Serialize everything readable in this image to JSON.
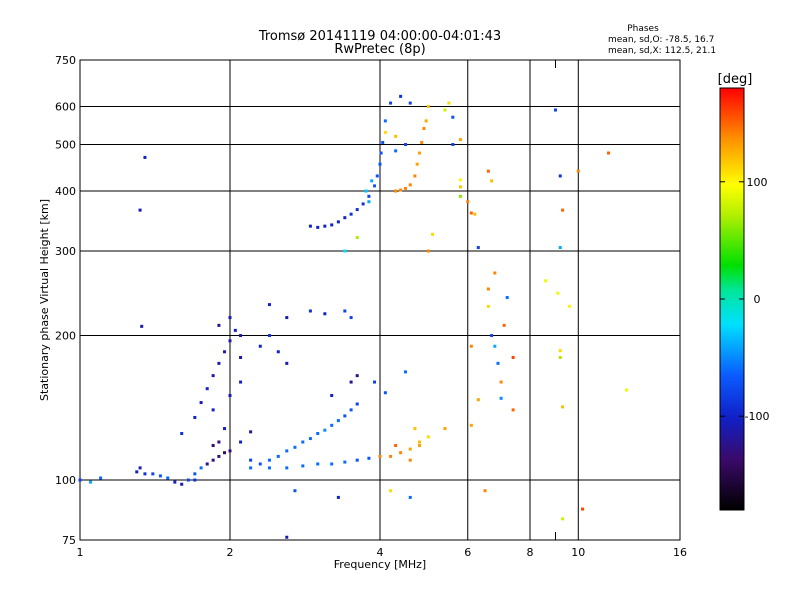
{
  "chart_data": {
    "type": "scatter",
    "title": "Tromsø 20141119 04:00:00-04:01:43",
    "subtitle": "RwPretec (8p)",
    "xlabel": "Frequency [MHz]",
    "ylabel": "Stationary phase Virtual Height [km]",
    "x_scale": "log",
    "y_scale": "log",
    "xlim": [
      1,
      16
    ],
    "ylim": [
      75,
      750
    ],
    "x_ticks": [
      {
        "v": 1,
        "label": "1"
      },
      {
        "v": 2,
        "label": "2"
      },
      {
        "v": 4,
        "label": "4"
      },
      {
        "v": 6,
        "label": "6"
      },
      {
        "v": 8,
        "label": "8"
      },
      {
        "v": 10,
        "label": "10"
      },
      {
        "v": 16,
        "label": "16"
      }
    ],
    "x_grid": [
      2,
      4,
      6,
      8,
      10
    ],
    "x_minor": [
      9
    ],
    "y_ticks": [
      {
        "v": 75,
        "label": "75"
      },
      {
        "v": 100,
        "label": "100"
      },
      {
        "v": 200,
        "label": "200"
      },
      {
        "v": 300,
        "label": "300"
      },
      {
        "v": 400,
        "label": "400"
      },
      {
        "v": 500,
        "label": "500"
      },
      {
        "v": 600,
        "label": "600"
      },
      {
        "v": 750,
        "label": "750"
      }
    ],
    "y_grid": [
      100,
      200,
      300,
      400,
      500,
      600
    ],
    "grid": true,
    "stats": {
      "title": "Phases",
      "line1": "mean, sd,O: -78.5, 16.7",
      "line2": "mean, sd,X: 112.5, 21.1"
    },
    "colorbar": {
      "label": "[deg]",
      "range": [
        -180,
        180
      ],
      "ticks": [
        {
          "v": 100,
          "label": "100"
        },
        {
          "v": 0,
          "label": "0"
        },
        {
          "v": -100,
          "label": "-100"
        }
      ]
    },
    "points": [
      [
        1.0,
        100,
        -80
      ],
      [
        1.05,
        99,
        -40
      ],
      [
        1.1,
        101,
        -60
      ],
      [
        1.35,
        470,
        -100
      ],
      [
        1.32,
        365,
        -110
      ],
      [
        1.33,
        209,
        -110
      ],
      [
        1.3,
        104,
        -100
      ],
      [
        1.32,
        106,
        -110
      ],
      [
        1.35,
        103,
        -90
      ],
      [
        1.4,
        103,
        -80
      ],
      [
        1.45,
        102,
        -70
      ],
      [
        1.5,
        101,
        -60
      ],
      [
        1.55,
        99,
        -100
      ],
      [
        1.6,
        98,
        -110
      ],
      [
        1.65,
        100,
        -80
      ],
      [
        1.7,
        103,
        -70
      ],
      [
        1.75,
        106,
        -60
      ],
      [
        1.8,
        108,
        -120
      ],
      [
        1.85,
        110,
        -130
      ],
      [
        1.9,
        112,
        -130
      ],
      [
        1.95,
        114,
        -140
      ],
      [
        2.0,
        115,
        -130
      ],
      [
        1.6,
        125,
        -90
      ],
      [
        1.7,
        135,
        -100
      ],
      [
        1.75,
        145,
        -110
      ],
      [
        1.8,
        155,
        -100
      ],
      [
        1.85,
        165,
        -110
      ],
      [
        1.9,
        175,
        -110
      ],
      [
        1.95,
        185,
        -110
      ],
      [
        2.0,
        195,
        -110
      ],
      [
        2.05,
        205,
        -100
      ],
      [
        1.9,
        210,
        -120
      ],
      [
        2.0,
        218,
        -110
      ],
      [
        2.1,
        200,
        -110
      ],
      [
        2.0,
        150,
        -110
      ],
      [
        2.1,
        160,
        -100
      ],
      [
        1.85,
        140,
        -100
      ],
      [
        1.95,
        128,
        -100
      ],
      [
        2.1,
        120,
        -100
      ],
      [
        2.2,
        110,
        -80
      ],
      [
        2.3,
        108,
        -70
      ],
      [
        2.4,
        110,
        -60
      ],
      [
        2.5,
        112,
        -60
      ],
      [
        2.6,
        115,
        -60
      ],
      [
        2.7,
        117,
        -60
      ],
      [
        2.8,
        120,
        -60
      ],
      [
        2.9,
        122,
        -60
      ],
      [
        3.0,
        125,
        -60
      ],
      [
        3.1,
        127,
        -50
      ],
      [
        3.2,
        130,
        -60
      ],
      [
        3.3,
        133,
        -60
      ],
      [
        3.4,
        136,
        -70
      ],
      [
        3.5,
        140,
        -70
      ],
      [
        3.6,
        144,
        -80
      ],
      [
        2.2,
        106,
        -60
      ],
      [
        2.4,
        106,
        -60
      ],
      [
        2.6,
        106,
        -60
      ],
      [
        2.8,
        107,
        -60
      ],
      [
        3.0,
        108,
        -60
      ],
      [
        3.2,
        108,
        -60
      ],
      [
        3.4,
        109,
        -60
      ],
      [
        3.6,
        110,
        -70
      ],
      [
        3.8,
        111,
        -70
      ],
      [
        4.0,
        112,
        140
      ],
      [
        4.2,
        112,
        140
      ],
      [
        4.4,
        114,
        140
      ],
      [
        4.6,
        116,
        130
      ],
      [
        4.8,
        120,
        120
      ],
      [
        5.0,
        123,
        110
      ],
      [
        2.1,
        180,
        -110
      ],
      [
        2.3,
        190,
        -100
      ],
      [
        2.4,
        200,
        -90
      ],
      [
        2.5,
        185,
        -100
      ],
      [
        2.6,
        175,
        -110
      ],
      [
        2.4,
        232,
        -100
      ],
      [
        2.6,
        218,
        -110
      ],
      [
        2.9,
        225,
        -90
      ],
      [
        3.1,
        222,
        -100
      ],
      [
        3.4,
        225,
        -80
      ],
      [
        3.5,
        218,
        -80
      ],
      [
        3.2,
        150,
        -100
      ],
      [
        3.5,
        160,
        -120
      ],
      [
        3.6,
        165,
        -130
      ],
      [
        3.9,
        160,
        -80
      ],
      [
        4.1,
        152,
        -70
      ],
      [
        4.5,
        168,
        -60
      ],
      [
        2.9,
        338,
        -100
      ],
      [
        3.0,
        336,
        -100
      ],
      [
        3.1,
        338,
        -100
      ],
      [
        3.2,
        340,
        -100
      ],
      [
        3.3,
        345,
        -100
      ],
      [
        3.4,
        352,
        -100
      ],
      [
        3.5,
        358,
        -90
      ],
      [
        3.6,
        366,
        -90
      ],
      [
        3.7,
        376,
        -90
      ],
      [
        3.8,
        390,
        -80
      ],
      [
        3.9,
        410,
        -70
      ],
      [
        3.95,
        430,
        -70
      ],
      [
        4.0,
        455,
        -70
      ],
      [
        4.02,
        480,
        -70
      ],
      [
        4.05,
        505,
        -70
      ],
      [
        4.1,
        560,
        -60
      ],
      [
        4.2,
        610,
        -80
      ],
      [
        4.4,
        630,
        -90
      ],
      [
        4.6,
        610,
        -80
      ],
      [
        3.85,
        420,
        -40
      ],
      [
        3.8,
        380,
        -40
      ],
      [
        3.75,
        400,
        -30
      ],
      [
        3.6,
        320,
        70
      ],
      [
        3.4,
        300,
        -20
      ],
      [
        4.3,
        400,
        140
      ],
      [
        4.4,
        402,
        140
      ],
      [
        4.5,
        405,
        140
      ],
      [
        4.6,
        412,
        140
      ],
      [
        4.7,
        430,
        140
      ],
      [
        4.75,
        455,
        130
      ],
      [
        4.8,
        480,
        130
      ],
      [
        4.85,
        505,
        140
      ],
      [
        4.9,
        540,
        140
      ],
      [
        4.95,
        560,
        130
      ],
      [
        5.0,
        600,
        120
      ],
      [
        4.3,
        520,
        120
      ],
      [
        4.3,
        485,
        -60
      ],
      [
        4.1,
        530,
        110
      ],
      [
        4.5,
        500,
        -80
      ],
      [
        5.0,
        300,
        140
      ],
      [
        5.1,
        325,
        110
      ],
      [
        5.4,
        590,
        80
      ],
      [
        5.5,
        610,
        110
      ],
      [
        5.6,
        570,
        -70
      ],
      [
        5.6,
        500,
        -80
      ],
      [
        5.8,
        512,
        130
      ],
      [
        5.8,
        422,
        100
      ],
      [
        5.8,
        408,
        120
      ],
      [
        5.8,
        390,
        60
      ],
      [
        6.0,
        380,
        140
      ],
      [
        6.1,
        360,
        150
      ],
      [
        6.2,
        358,
        120
      ],
      [
        6.3,
        305,
        -80
      ],
      [
        6.6,
        440,
        150
      ],
      [
        6.7,
        420,
        120
      ],
      [
        6.6,
        250,
        140
      ],
      [
        6.6,
        230,
        110
      ],
      [
        6.8,
        270,
        140
      ],
      [
        6.7,
        200,
        -80
      ],
      [
        6.8,
        190,
        -40
      ],
      [
        6.9,
        175,
        -60
      ],
      [
        7.0,
        160,
        140
      ],
      [
        7.0,
        148,
        -50
      ],
      [
        7.2,
        240,
        -60
      ],
      [
        7.1,
        210,
        150
      ],
      [
        7.4,
        180,
        160
      ],
      [
        7.4,
        140,
        150
      ],
      [
        9.0,
        590,
        -80
      ],
      [
        9.2,
        430,
        -90
      ],
      [
        9.3,
        365,
        150
      ],
      [
        9.2,
        305,
        -40
      ],
      [
        9.1,
        245,
        90
      ],
      [
        9.2,
        186,
        110
      ],
      [
        9.2,
        180,
        70
      ],
      [
        9.3,
        142,
        120
      ],
      [
        9.3,
        83,
        80
      ],
      [
        9.6,
        230,
        100
      ],
      [
        10.2,
        87,
        160
      ],
      [
        10.0,
        440,
        140
      ],
      [
        8.6,
        260,
        90
      ],
      [
        11.5,
        480,
        150
      ],
      [
        12.5,
        154,
        90
      ],
      [
        6.1,
        190,
        140
      ],
      [
        6.3,
        147,
        130
      ],
      [
        6.1,
        130,
        130
      ],
      [
        5.4,
        128,
        130
      ],
      [
        4.6,
        110,
        140
      ],
      [
        4.7,
        128,
        120
      ],
      [
        4.8,
        118,
        130
      ],
      [
        4.3,
        118,
        150
      ],
      [
        1.9,
        120,
        -130
      ],
      [
        1.85,
        118,
        -140
      ],
      [
        2.2,
        126,
        -120
      ],
      [
        1.7,
        100,
        -90
      ],
      [
        2.7,
        95,
        -70
      ],
      [
        2.6,
        76,
        -110
      ],
      [
        3.3,
        92,
        -100
      ],
      [
        4.2,
        95,
        110
      ],
      [
        4.6,
        92,
        -60
      ],
      [
        6.5,
        95,
        140
      ]
    ]
  }
}
